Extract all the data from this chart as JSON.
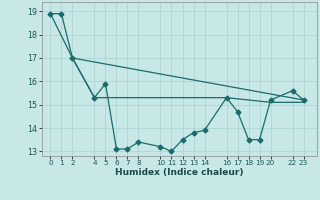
{
  "title": "",
  "xlabel": "Humidex (Indice chaleur)",
  "bg_color": "#c8e8e8",
  "grid_color": "#a8d0d0",
  "line_color": "#1a6b6b",
  "ylim": [
    12.8,
    19.4
  ],
  "xlim": [
    -0.8,
    24.2
  ],
  "yticks": [
    13,
    14,
    15,
    16,
    17,
    18,
    19
  ],
  "xticks": [
    0,
    1,
    2,
    4,
    5,
    6,
    7,
    8,
    10,
    11,
    12,
    13,
    14,
    16,
    17,
    18,
    19,
    20,
    22,
    23
  ],
  "line1_x": [
    0,
    1,
    2,
    4,
    5,
    6,
    7,
    8,
    10,
    11,
    12,
    13,
    14,
    16,
    17,
    18,
    19,
    20,
    22,
    23
  ],
  "line1_y": [
    18.9,
    18.9,
    17.0,
    15.3,
    15.9,
    13.1,
    13.1,
    13.4,
    13.2,
    13.0,
    13.5,
    13.8,
    13.9,
    15.3,
    14.7,
    13.5,
    13.5,
    15.2,
    15.6,
    15.2
  ],
  "line2_x": [
    0,
    2,
    23
  ],
  "line2_y": [
    18.9,
    17.0,
    15.2
  ],
  "line3_x": [
    2,
    4,
    16,
    20,
    23
  ],
  "line3_y": [
    17.0,
    15.3,
    15.3,
    15.1,
    15.1
  ],
  "marker_size": 2.5,
  "linewidth": 0.9
}
